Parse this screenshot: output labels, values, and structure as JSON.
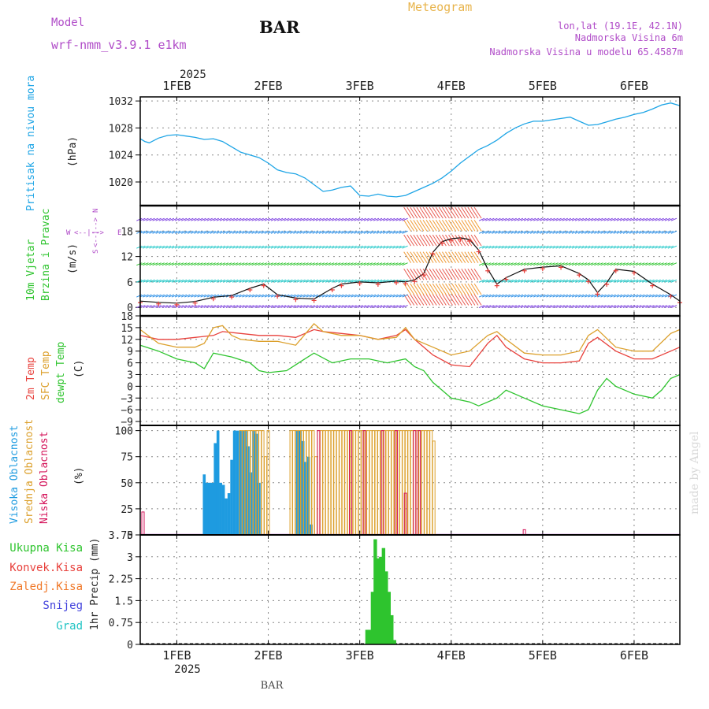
{
  "header": {
    "model_label": "Model",
    "model_name": "wrf-nmm_v3.9.1 e1km",
    "station": "BAR",
    "title": "Meteogram",
    "coords": "lon,lat (19.1E, 42.1N)",
    "altitude": "Nadmorska Visina 6m",
    "model_altitude": "Nadmorska Visina u modelu 65.4587m",
    "watermark": "made by Angel",
    "footer_station": "BAR"
  },
  "colors": {
    "pressure": "#1ea5e6",
    "temp": "#e8413c",
    "sfc": "#dca02c",
    "dewpt": "#2ec42e",
    "high_cloud": "#1e9be0",
    "mid_cloud": "#dca02c",
    "low_cloud": "#d4145a",
    "purple": "#b04cc8",
    "orange_text": "#e8b44c",
    "total_precip": "#2ec42e",
    "conv_precip": "#e8413c",
    "frz_precip": "#f07828",
    "snow": "#4444dd",
    "hail": "#22c4c4"
  },
  "x_axis": {
    "year": "2025",
    "ticks": [
      "1FEB",
      "2FEB",
      "3FEB",
      "4FEB",
      "5FEB",
      "6FEB"
    ],
    "tick_days": [
      1,
      2,
      3,
      4,
      5,
      6
    ],
    "range_days": [
      0.6,
      6.5
    ]
  },
  "chart_data": [
    {
      "type": "line",
      "panel": "pressure",
      "ylabel": [
        "Pritisak na nivou mora",
        "(hPa)"
      ],
      "yticks": [
        1020,
        1024,
        1028,
        1032
      ],
      "ylim": [
        1016.5,
        1032.6
      ],
      "series": [
        {
          "values_x": [
            0.6,
            0.65,
            0.7,
            0.8,
            0.9,
            1.0,
            1.1,
            1.2,
            1.3,
            1.4,
            1.5,
            1.6,
            1.7,
            1.8,
            1.9,
            2.0,
            2.1,
            2.2,
            2.3,
            2.4,
            2.5,
            2.6,
            2.7,
            2.8,
            2.9,
            3.0,
            3.1,
            3.2,
            3.3,
            3.4,
            3.5,
            3.6,
            3.7,
            3.8,
            3.9,
            4.0,
            4.1,
            4.2,
            4.3,
            4.4,
            4.5,
            4.6,
            4.7,
            4.8,
            4.9,
            5.0,
            5.1,
            5.2,
            5.3,
            5.4,
            5.5,
            5.6,
            5.7,
            5.8,
            5.9,
            6.0,
            6.1,
            6.2,
            6.3,
            6.4,
            6.5
          ],
          "values_y": [
            1026.4,
            1026.0,
            1025.8,
            1026.5,
            1026.9,
            1027.0,
            1026.8,
            1026.6,
            1026.3,
            1026.4,
            1026.0,
            1025.2,
            1024.4,
            1024.0,
            1023.6,
            1022.8,
            1021.8,
            1021.4,
            1021.2,
            1020.6,
            1019.6,
            1018.6,
            1018.8,
            1019.2,
            1019.4,
            1018.0,
            1017.9,
            1018.2,
            1017.9,
            1017.8,
            1018.0,
            1018.6,
            1019.2,
            1019.8,
            1020.6,
            1021.6,
            1022.8,
            1023.8,
            1024.8,
            1025.4,
            1026.2,
            1027.2,
            1028.0,
            1028.6,
            1029.0,
            1029.0,
            1029.2,
            1029.4,
            1029.6,
            1029.0,
            1028.4,
            1028.5,
            1028.9,
            1029.3,
            1029.6,
            1030.0,
            1030.3,
            1030.8,
            1031.4,
            1031.7,
            1031.3
          ]
        }
      ]
    },
    {
      "type": "line",
      "panel": "wind",
      "ylabel": [
        "10m Vjetar",
        "Brzina i Pravac",
        "(m/s)"
      ],
      "yticks": [
        0,
        6,
        12,
        18
      ],
      "ylim": [
        -2,
        24
      ],
      "compass": [
        "W",
        "<--|-->",
        "E",
        "S",
        "<--|-->",
        "N"
      ],
      "series": [
        {
          "name": "speed",
          "values_x": [
            0.6,
            0.8,
            1.0,
            1.2,
            1.4,
            1.6,
            1.8,
            1.95,
            2.1,
            2.3,
            2.5,
            2.7,
            2.8,
            3.0,
            3.2,
            3.4,
            3.5,
            3.6,
            3.7,
            3.8,
            3.9,
            4.0,
            4.1,
            4.2,
            4.3,
            4.4,
            4.5,
            4.6,
            4.8,
            5.0,
            5.2,
            5.4,
            5.5,
            5.6,
            5.7,
            5.8,
            6.0,
            6.2,
            6.4,
            6.5
          ],
          "values_y": [
            1.5,
            1.2,
            1.0,
            1.4,
            2.4,
            2.8,
            4.5,
            5.5,
            3.0,
            2.2,
            2.0,
            4.5,
            5.5,
            6.0,
            5.8,
            6.2,
            6.0,
            6.5,
            8.0,
            13.0,
            15.5,
            16.2,
            16.4,
            16.0,
            13.5,
            9.0,
            5.5,
            7.0,
            9.0,
            9.5,
            9.8,
            8.0,
            6.5,
            3.5,
            5.8,
            9.0,
            8.5,
            5.5,
            3.0,
            1.5
          ]
        }
      ]
    },
    {
      "type": "line",
      "panel": "temperature",
      "ylabel": [
        "2m Temp",
        "SFC Temp",
        "dewpt Temp",
        "(C)"
      ],
      "yticks": [
        -9,
        -6,
        -3,
        0,
        3,
        6,
        9,
        12,
        15,
        18
      ],
      "ylim": [
        -10,
        18
      ],
      "series": [
        {
          "name": "2m",
          "values_x": [
            0.6,
            0.8,
            1.0,
            1.2,
            1.4,
            1.5,
            1.7,
            1.9,
            2.1,
            2.3,
            2.5,
            2.6,
            2.8,
            3.0,
            3.2,
            3.4,
            3.5,
            3.6,
            3.8,
            4.0,
            4.2,
            4.4,
            4.5,
            4.6,
            4.8,
            5.0,
            5.2,
            5.4,
            5.5,
            5.6,
            5.8,
            6.0,
            6.2,
            6.4,
            6.5
          ],
          "values_y": [
            13,
            12,
            12,
            12.5,
            13,
            14,
            13.5,
            13,
            13,
            12.5,
            14.5,
            14,
            13.5,
            13,
            12,
            13,
            14.5,
            12,
            8,
            5.5,
            5,
            11,
            13,
            10,
            7,
            6,
            6,
            6.5,
            11,
            12.5,
            9,
            7,
            7,
            9,
            10
          ]
        },
        {
          "name": "sfc",
          "values_x": [
            0.6,
            0.8,
            1.0,
            1.2,
            1.3,
            1.4,
            1.5,
            1.6,
            1.7,
            1.9,
            2.1,
            2.3,
            2.5,
            2.6,
            2.8,
            3.0,
            3.2,
            3.4,
            3.5,
            3.6,
            3.8,
            4.0,
            4.2,
            4.4,
            4.5,
            4.6,
            4.8,
            5.0,
            5.2,
            5.4,
            5.5,
            5.6,
            5.8,
            6.0,
            6.2,
            6.4,
            6.5
          ],
          "values_y": [
            14.5,
            11,
            10,
            10,
            11,
            15,
            15.5,
            13,
            12,
            11.5,
            11.5,
            10.5,
            16,
            14,
            13,
            13,
            12,
            12.5,
            15,
            12,
            10,
            8,
            9,
            13,
            14,
            12,
            8.5,
            8,
            8,
            9,
            13,
            14.5,
            10,
            9,
            9,
            13.5,
            14.5
          ]
        },
        {
          "name": "dewpt",
          "values_x": [
            0.6,
            0.8,
            1.0,
            1.2,
            1.3,
            1.4,
            1.6,
            1.8,
            1.9,
            2.0,
            2.2,
            2.4,
            2.5,
            2.7,
            2.9,
            3.1,
            3.3,
            3.5,
            3.6,
            3.7,
            3.8,
            3.9,
            4.0,
            4.2,
            4.3,
            4.5,
            4.6,
            4.8,
            5.0,
            5.2,
            5.4,
            5.5,
            5.6,
            5.7,
            5.8,
            6.0,
            6.2,
            6.3,
            6.4,
            6.5
          ],
          "values_y": [
            10.5,
            9,
            7,
            6,
            4.5,
            8.5,
            7.5,
            6,
            4,
            3.5,
            4,
            7,
            8.5,
            6,
            7,
            7,
            6,
            7,
            5,
            4,
            1,
            -1,
            -3,
            -4,
            -5,
            -3,
            -1,
            -3,
            -5,
            -6,
            -7,
            -6,
            -1,
            2,
            0,
            -2,
            -3,
            -1,
            2,
            3
          ]
        }
      ]
    },
    {
      "type": "bar",
      "panel": "clouds",
      "ylabel": [
        "Visoka Oblacnost",
        "Srednja Oblacnost",
        "Niska Oblacnost",
        "(%)"
      ],
      "yticks": [
        0,
        25,
        50,
        75,
        100
      ],
      "ylim": [
        0,
        105
      ],
      "series": [
        {
          "name": "high",
          "values_x": [
            1.3,
            1.33,
            1.36,
            1.39,
            1.42,
            1.45,
            1.48,
            1.51,
            1.54,
            1.57,
            1.6,
            1.63,
            1.66,
            1.69,
            1.72,
            1.75,
            1.78,
            1.81,
            1.84,
            1.87,
            1.9,
            2.32,
            2.35,
            2.38,
            2.41,
            2.44,
            2.47
          ],
          "values_y": [
            58,
            50,
            50,
            50,
            88,
            100,
            50,
            48,
            35,
            40,
            72,
            100,
            100,
            100,
            100,
            100,
            85,
            60,
            100,
            97,
            50,
            100,
            100,
            90,
            70,
            75,
            10
          ]
        },
        {
          "name": "mid",
          "values_x": [
            1.7,
            1.73,
            1.76,
            1.79,
            1.82,
            1.85,
            1.88,
            1.91,
            1.94,
            1.97,
            2.0,
            2.25,
            2.28,
            2.31,
            2.34,
            2.37,
            2.4,
            2.43,
            2.46,
            2.49,
            2.52,
            2.55,
            2.58,
            2.61,
            2.64,
            2.67,
            2.7,
            2.73,
            2.76,
            2.79,
            2.82,
            2.85,
            2.88,
            2.91,
            2.94,
            2.97,
            3.0,
            3.03,
            3.06,
            3.09,
            3.12,
            3.15,
            3.18,
            3.21,
            3.24,
            3.27,
            3.3,
            3.33,
            3.36,
            3.39,
            3.42,
            3.45,
            3.48,
            3.51,
            3.54,
            3.57,
            3.6,
            3.63,
            3.66,
            3.69,
            3.72,
            3.75,
            3.78,
            3.81
          ],
          "values_y": [
            100,
            100,
            100,
            100,
            100,
            100,
            100,
            100,
            100,
            75,
            100,
            100,
            100,
            100,
            100,
            100,
            100,
            100,
            100,
            100,
            75,
            100,
            100,
            100,
            100,
            100,
            100,
            100,
            100,
            100,
            100,
            100,
            100,
            100,
            100,
            100,
            100,
            100,
            100,
            100,
            100,
            100,
            100,
            100,
            100,
            100,
            100,
            100,
            100,
            100,
            100,
            100,
            100,
            100,
            100,
            100,
            100,
            100,
            100,
            100,
            100,
            100,
            100,
            90
          ]
        },
        {
          "name": "low",
          "values_x": [
            0.63,
            2.55,
            2.9,
            3.05,
            3.25,
            3.4,
            3.5,
            3.6,
            3.65,
            4.8
          ],
          "values_y": [
            22,
            100,
            100,
            100,
            100,
            100,
            40,
            100,
            100,
            5
          ]
        }
      ]
    },
    {
      "type": "bar",
      "panel": "precip",
      "ylabel": [
        "1hr Precip (mm)"
      ],
      "legend": [
        "Ukupna Kisa",
        "Konvek.Kisa",
        "Zaledj.Kisa",
        "Snijeg",
        "Grad"
      ],
      "yticks": [
        0,
        0.75,
        1.5,
        2.25,
        3,
        3.75
      ],
      "ylim": [
        0,
        3.75
      ],
      "series": [
        {
          "name": "total",
          "values_x": [
            3.08,
            3.11,
            3.14,
            3.17,
            3.2,
            3.23,
            3.26,
            3.29,
            3.32,
            3.35,
            3.38
          ],
          "values_y": [
            0.5,
            0.5,
            1.8,
            3.6,
            2.95,
            3.0,
            3.3,
            2.5,
            1.8,
            1.0,
            0.15
          ]
        }
      ]
    }
  ]
}
